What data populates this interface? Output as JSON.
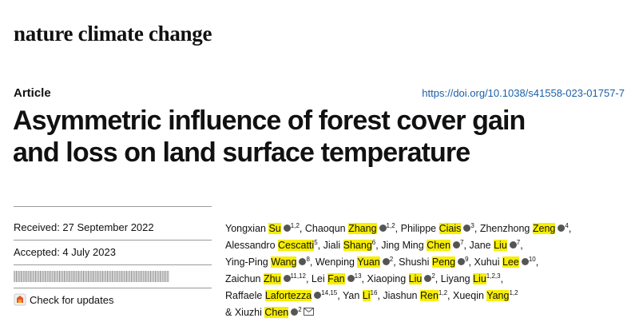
{
  "journal": "nature climate change",
  "article_type": "Article",
  "doi": "https://doi.org/10.1038/s41558-023-01757-7",
  "title": {
    "lines": [
      "Asymmetric influence of forest cover gain",
      "and loss on land surface temperature"
    ]
  },
  "dates": {
    "received": "Received: 27 September 2022",
    "accepted": "Accepted: 4 July 2023"
  },
  "check_updates": "Check for updates",
  "authors": {
    "separator": ",",
    "lines": [
      [
        {
          "given": "Yongxian",
          "surname": "Su",
          "orcid": true,
          "affil": "1,2"
        },
        {
          "given": "Chaoqun",
          "surname": "Zhang",
          "orcid": true,
          "affil": "1,2"
        },
        {
          "given": "Philippe",
          "surname": "Ciais",
          "orcid": true,
          "affil": "3"
        },
        {
          "given": "Zhenzhong",
          "surname": "Zeng",
          "orcid": true,
          "affil": "4"
        }
      ],
      [
        {
          "given": "Alessandro",
          "surname": "Cescatti",
          "orcid": false,
          "affil": "5"
        },
        {
          "given": "Jiali",
          "surname": "Shang",
          "orcid": false,
          "affil": "6"
        },
        {
          "given": "Jing Ming",
          "surname": "Chen",
          "orcid": true,
          "affil": "7"
        },
        {
          "given": "Jane",
          "surname": "Liu",
          "orcid": true,
          "affil": "7"
        }
      ],
      [
        {
          "given": "Ying-Ping",
          "surname": "Wang",
          "orcid": true,
          "affil": "8"
        },
        {
          "given": "Wenping",
          "surname": "Yuan",
          "orcid": true,
          "affil": "2"
        },
        {
          "given": "Shushi",
          "surname": "Peng",
          "orcid": true,
          "affil": "9"
        },
        {
          "given": "Xuhui",
          "surname": "Lee",
          "orcid": true,
          "affil": "10"
        }
      ],
      [
        {
          "given": "Zaichun",
          "surname": "Zhu",
          "orcid": true,
          "affil": "11,12"
        },
        {
          "given": "Lei",
          "surname": "Fan",
          "orcid": true,
          "affil": "13"
        },
        {
          "given": "Xiaoping",
          "surname": "Liu",
          "orcid": true,
          "affil": "2"
        },
        {
          "given": "Liyang",
          "surname": "Liu",
          "orcid": false,
          "affil": "1,2,3"
        }
      ],
      [
        {
          "given": "Raffaele",
          "surname": "Lafortezza",
          "orcid": true,
          "affil": "14,15"
        },
        {
          "given": "Yan",
          "surname": "Li",
          "orcid": false,
          "affil": "16"
        },
        {
          "given": "Jiashun",
          "surname": "Ren",
          "orcid": false,
          "affil": "1,2"
        },
        {
          "given": "Xueqin",
          "surname": "Yang",
          "orcid": false,
          "affil": "1,2"
        }
      ],
      [
        {
          "prefix": "&",
          "given": "Xiuzhi",
          "surname": "Chen",
          "orcid": true,
          "affil": "2",
          "email": true
        }
      ]
    ]
  }
}
